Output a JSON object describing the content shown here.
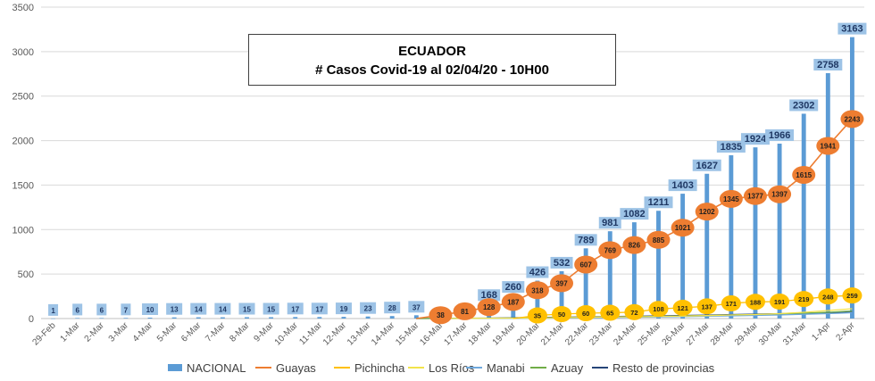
{
  "chart_data": {
    "type": "bar",
    "title": "ECUADOR",
    "subtitle": "# Casos Covid-19  al 02/04/20 - 10H00",
    "categories": [
      "29-Feb",
      "1-Mar",
      "2-Mar",
      "3-Mar",
      "4-Mar",
      "5-Mar",
      "6-Mar",
      "7-Mar",
      "8-Mar",
      "9-Mar",
      "10-Mar",
      "11-Mar",
      "12-Mar",
      "13-Mar",
      "14-Mar",
      "15-Mar",
      "16-Mar",
      "17-Mar",
      "18-Mar",
      "19-Mar",
      "20-Mar",
      "21-Mar",
      "22-Mar",
      "23-Mar",
      "24-Mar",
      "25-Mar",
      "26-Mar",
      "27-Mar",
      "28-Mar",
      "29-Mar",
      "30-Mar",
      "31-Mar",
      "1-Apr",
      "2-Apr"
    ],
    "ylim": [
      0,
      3500
    ],
    "yticks": [
      0,
      500,
      1000,
      1500,
      2000,
      2500,
      3000,
      3500
    ],
    "grid": true,
    "legend_position": "bottom",
    "series": [
      {
        "name": "NACIONAL",
        "kind": "bar",
        "color": "#5b9bd5",
        "values": [
          1,
          6,
          6,
          7,
          10,
          13,
          14,
          14,
          15,
          15,
          17,
          17,
          19,
          23,
          28,
          37,
          58,
          111,
          168,
          260,
          426,
          532,
          789,
          981,
          1082,
          1211,
          1403,
          1627,
          1835,
          1924,
          1966,
          2302,
          2758,
          3163
        ],
        "labels": [
          "1",
          "6",
          "6",
          "7",
          "10",
          "13",
          "14",
          "14",
          "15",
          "15",
          "17",
          "17",
          "19",
          "23",
          "28",
          "37",
          "",
          "",
          "168",
          "260",
          "426",
          "532",
          "789",
          "981",
          "1082",
          "1211",
          "1403",
          "1627",
          "1835",
          "1924",
          "1966",
          "2302",
          "2758",
          "3163"
        ]
      },
      {
        "name": "Guayas",
        "kind": "line",
        "color": "#ed7d31",
        "values": [
          0,
          0,
          0,
          0,
          0,
          0,
          0,
          0,
          0,
          0,
          0,
          0,
          0,
          0,
          0,
          0,
          38,
          81,
          128,
          187,
          318,
          397,
          607,
          769,
          826,
          885,
          1021,
          1202,
          1345,
          1377,
          1397,
          1615,
          1941,
          2243
        ],
        "labels": [
          "",
          "",
          "",
          "",
          "",
          "",
          "",
          "",
          "",
          "",
          "",
          "",
          "",
          "",
          "",
          "",
          "38",
          "81",
          "128",
          "187",
          "318",
          "397",
          "607",
          "769",
          "826",
          "885",
          "1021",
          "1202",
          "1345",
          "1377",
          "1397",
          "1615",
          "1941",
          "2243"
        ]
      },
      {
        "name": "Pichincha",
        "kind": "line",
        "color": "#ffc000",
        "values": [
          0,
          0,
          0,
          0,
          0,
          0,
          0,
          0,
          0,
          0,
          0,
          0,
          0,
          0,
          0,
          0,
          0,
          0,
          0,
          0,
          35,
          50,
          60,
          65,
          72,
          108,
          121,
          137,
          171,
          188,
          191,
          219,
          248,
          259
        ],
        "labels": [
          "",
          "",
          "",
          "",
          "",
          "",
          "",
          "",
          "",
          "",
          "",
          "",
          "",
          "",
          "",
          "",
          "",
          "",
          "",
          "",
          "35",
          "50",
          "60",
          "65",
          "72",
          "108",
          "121",
          "137",
          "171",
          "188",
          "191",
          "219",
          "248",
          "259"
        ]
      },
      {
        "name": "Los Ríos",
        "kind": "line",
        "color": "#f2e34b",
        "values": [
          0,
          0,
          0,
          0,
          0,
          0,
          0,
          0,
          0,
          0,
          0,
          0,
          0,
          0,
          0,
          0,
          0,
          2,
          4,
          5,
          7,
          10,
          14,
          18,
          20,
          24,
          28,
          33,
          40,
          45,
          55,
          70,
          90,
          110
        ]
      },
      {
        "name": "Manabi",
        "kind": "line",
        "color": "#6fa8dc",
        "values": [
          0,
          0,
          0,
          0,
          0,
          0,
          0,
          0,
          0,
          0,
          0,
          0,
          0,
          0,
          0,
          0,
          0,
          1,
          2,
          3,
          5,
          7,
          9,
          12,
          15,
          18,
          22,
          26,
          30,
          35,
          40,
          48,
          55,
          65
        ]
      },
      {
        "name": "Azuay",
        "kind": "line",
        "color": "#70ad47",
        "values": [
          0,
          0,
          0,
          0,
          0,
          0,
          0,
          0,
          0,
          0,
          0,
          0,
          0,
          0,
          0,
          0,
          1,
          2,
          3,
          5,
          7,
          10,
          13,
          17,
          20,
          24,
          28,
          32,
          40,
          45,
          52,
          60,
          70,
          85
        ]
      },
      {
        "name": "Resto de provincias",
        "kind": "line",
        "color": "#264478",
        "values": [
          0,
          0,
          0,
          0,
          0,
          0,
          0,
          0,
          0,
          0,
          0,
          0,
          0,
          0,
          0,
          0,
          2,
          3,
          5,
          8,
          12,
          15,
          18,
          22,
          26,
          30,
          35,
          38,
          45,
          50,
          55,
          60,
          65,
          70
        ]
      }
    ]
  }
}
